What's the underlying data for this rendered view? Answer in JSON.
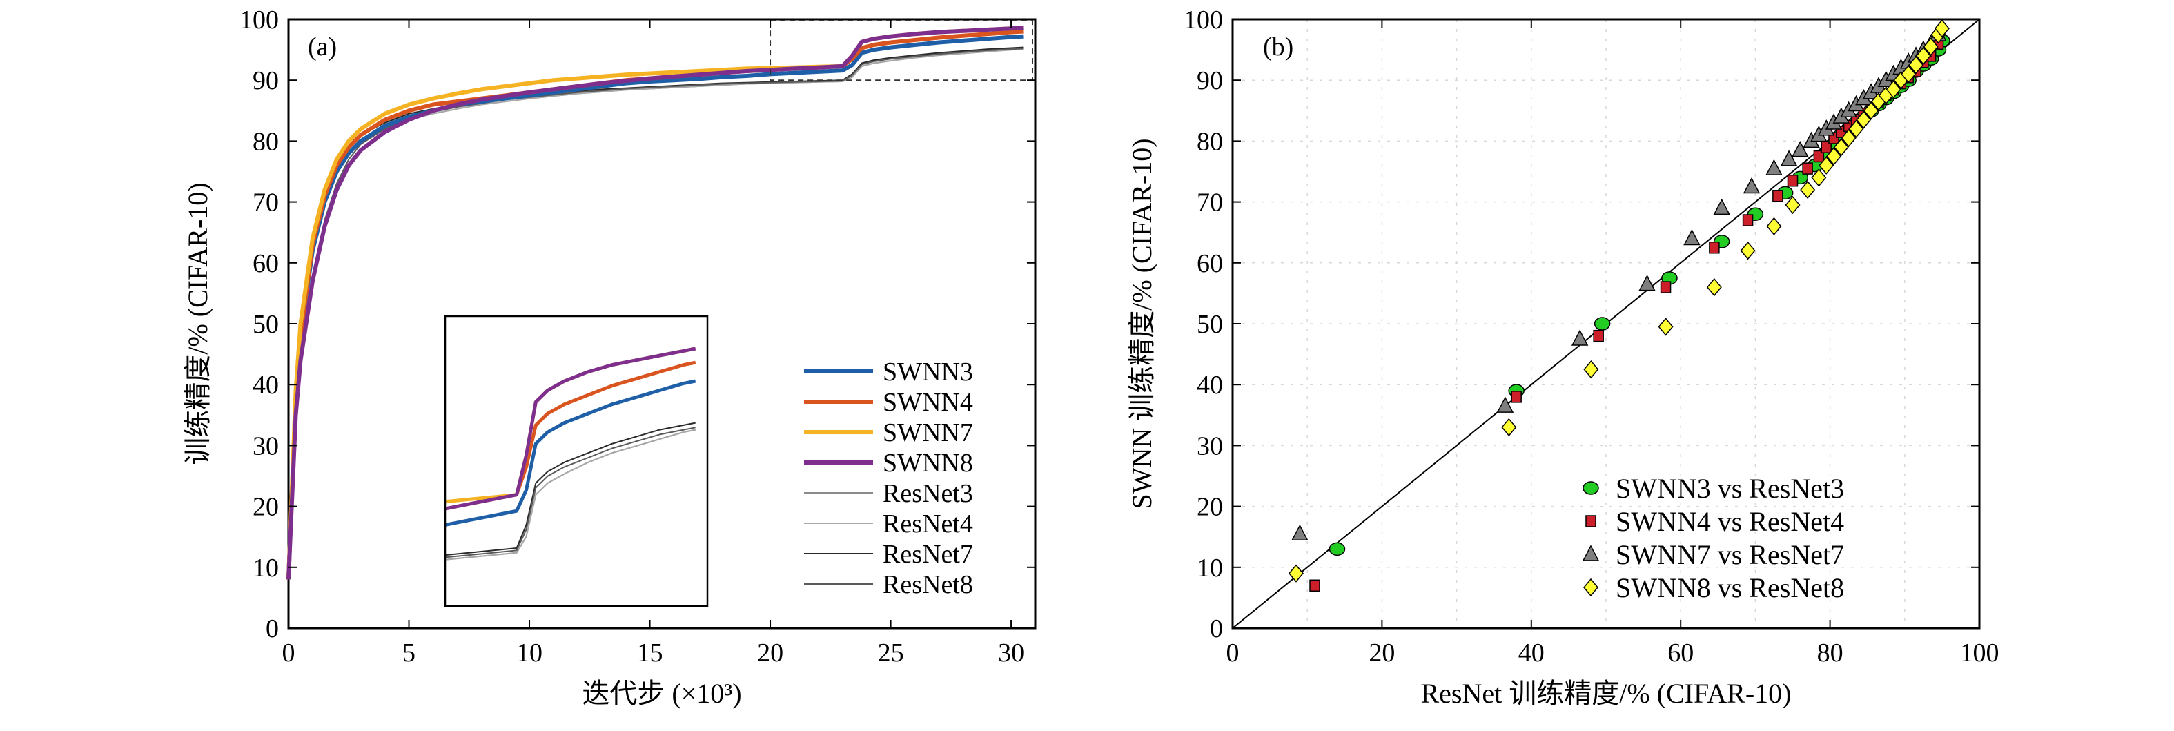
{
  "chart_data": [
    {
      "type": "line",
      "panel_label": "(a)",
      "xlabel": "迭代步 (×10³)",
      "ylabel": "训练精度/% (CIFAR-10)",
      "xlim": [
        0,
        31
      ],
      "ylim": [
        0,
        100
      ],
      "x_ticks": [
        "0",
        "5",
        "10",
        "15",
        "20",
        "25",
        "30"
      ],
      "y_ticks": [
        "0",
        "10",
        "20",
        "30",
        "40",
        "50",
        "60",
        "70",
        "80",
        "90",
        "100"
      ],
      "legend_position": "lower-right",
      "x": [
        0,
        0.3,
        0.5,
        1,
        1.5,
        2,
        2.5,
        3,
        4,
        5,
        6,
        7,
        8,
        9,
        10,
        11,
        12,
        13,
        14,
        15,
        16,
        17,
        18,
        19,
        20,
        21,
        22,
        23,
        23.4,
        23.8,
        24.3,
        25,
        26,
        27,
        28,
        29,
        30,
        30.5
      ],
      "series": [
        {
          "name": "SWNN3",
          "color": "#1f5fa8",
          "width": 6,
          "values": [
            8,
            38,
            48,
            62,
            70,
            75,
            78,
            80,
            82.5,
            84,
            85,
            86,
            86.5,
            87,
            87.5,
            88,
            88.5,
            89,
            89.5,
            89.8,
            90,
            90.2,
            90.5,
            90.7,
            91,
            91.2,
            91.4,
            91.6,
            92.5,
            94.5,
            95,
            95.4,
            95.8,
            96.2,
            96.5,
            96.8,
            97.1,
            97.2
          ]
        },
        {
          "name": "SWNN4",
          "color": "#d9541e",
          "width": 6,
          "values": [
            8,
            38,
            48,
            63,
            71,
            76,
            79,
            81,
            83.5,
            85,
            86,
            86.5,
            87,
            87.5,
            88,
            88.5,
            89,
            89.5,
            90,
            90.3,
            90.6,
            90.9,
            91.2,
            91.5,
            91.7,
            91.9,
            92.1,
            92.3,
            93.5,
            95.3,
            95.8,
            96.2,
            96.6,
            97,
            97.3,
            97.6,
            97.9,
            98
          ]
        },
        {
          "name": "SWNN7",
          "color": "#f5b324",
          "width": 6,
          "values": [
            8,
            39,
            50,
            64,
            72,
            77,
            80,
            82,
            84.5,
            86,
            87,
            87.8,
            88.5,
            89,
            89.5,
            90,
            90.3,
            90.6,
            90.9,
            91.1,
            91.3,
            91.5,
            91.7,
            91.9,
            92,
            92.1,
            92.2,
            92.3,
            94,
            96.3,
            96.8,
            97.2,
            97.6,
            97.9,
            98.1,
            98.3,
            98.5,
            98.6
          ]
        },
        {
          "name": "SWNN8",
          "color": "#7e2f8e",
          "width": 6,
          "values": [
            8,
            35,
            44,
            57,
            66,
            72,
            76,
            78.5,
            81.5,
            83.5,
            85,
            86,
            86.8,
            87.4,
            88,
            88.5,
            89,
            89.5,
            89.9,
            90.3,
            90.6,
            90.9,
            91.2,
            91.5,
            91.7,
            91.9,
            92.1,
            92.3,
            94,
            96.3,
            96.8,
            97.2,
            97.6,
            97.9,
            98.1,
            98.3,
            98.5,
            98.6
          ]
        },
        {
          "name": "ResNet3",
          "color": "#8a8a8a",
          "width": 2,
          "values": [
            8,
            38,
            48,
            62,
            70,
            75,
            78,
            80,
            82,
            83.5,
            84.5,
            85.3,
            86,
            86.5,
            87,
            87.4,
            87.8,
            88.1,
            88.4,
            88.6,
            88.8,
            89,
            89.2,
            89.4,
            89.5,
            89.6,
            89.7,
            89.8,
            90.5,
            92.3,
            92.8,
            93.2,
            93.7,
            94.1,
            94.4,
            94.7,
            95,
            95.1
          ]
        },
        {
          "name": "ResNet4",
          "color": "#a8a8a8",
          "width": 2,
          "values": [
            8,
            38,
            48,
            62,
            70,
            75,
            78,
            80,
            82,
            83.5,
            84.5,
            85.3,
            86,
            86.5,
            87,
            87.4,
            87.8,
            88.1,
            88.4,
            88.6,
            88.8,
            89,
            89.2,
            89.4,
            89.5,
            89.6,
            89.7,
            89.8,
            90.5,
            92.3,
            92.8,
            93.2,
            93.7,
            94.1,
            94.4,
            94.7,
            95,
            95.1
          ]
        },
        {
          "name": "ResNet7",
          "color": "#2a2a2a",
          "width": 2,
          "values": [
            8,
            39,
            49,
            63,
            71,
            76,
            79,
            81,
            83,
            84.5,
            85.3,
            86,
            86.6,
            87.1,
            87.5,
            87.9,
            88.2,
            88.5,
            88.7,
            88.9,
            89.1,
            89.3,
            89.5,
            89.6,
            89.7,
            89.8,
            89.9,
            90,
            91,
            92.8,
            93.3,
            93.7,
            94.1,
            94.5,
            94.8,
            95.1,
            95.3,
            95.4
          ]
        },
        {
          "name": "ResNet8",
          "color": "#5a5a5a",
          "width": 2,
          "values": [
            8,
            36,
            45,
            58,
            67,
            73,
            77,
            79.5,
            82,
            83.8,
            84.8,
            85.6,
            86.2,
            86.8,
            87.2,
            87.6,
            88,
            88.3,
            88.6,
            88.8,
            89,
            89.2,
            89.4,
            89.5,
            89.6,
            89.7,
            89.8,
            89.9,
            90.8,
            92.6,
            93.1,
            93.5,
            93.9,
            94.3,
            94.6,
            94.9,
            95.1,
            95.2
          ]
        }
      ],
      "inset_range": {
        "x": [
          20,
          31
        ],
        "y": [
          90,
          100
        ]
      }
    },
    {
      "type": "scatter",
      "panel_label": "(b)",
      "xlabel": "ResNet 训练精度/% (CIFAR-10)",
      "ylabel": "SWNN 训练精度/% (CIFAR-10)",
      "xlim": [
        0,
        100
      ],
      "ylim": [
        0,
        100
      ],
      "x_ticks": [
        "0",
        "20",
        "40",
        "60",
        "80",
        "100"
      ],
      "y_ticks": [
        "0",
        "10",
        "20",
        "30",
        "40",
        "50",
        "60",
        "70",
        "80",
        "90",
        "100"
      ],
      "reference_line": "y = x",
      "legend_position": "lower-right",
      "series": [
        {
          "name": "SWNN3 vs ResNet3",
          "marker": "circle",
          "color": "#22cc22",
          "points": [
            [
              14,
              13
            ],
            [
              38,
              39
            ],
            [
              49.5,
              50
            ],
            [
              58.5,
              57.5
            ],
            [
              65.5,
              63.5
            ],
            [
              70,
              68
            ],
            [
              74,
              71.5
            ],
            [
              76,
              74
            ],
            [
              78,
              76
            ],
            [
              79.5,
              78
            ],
            [
              80.5,
              79.5
            ],
            [
              81.5,
              81
            ],
            [
              82.5,
              82
            ],
            [
              83.5,
              83
            ],
            [
              84.5,
              84
            ],
            [
              85.5,
              85
            ],
            [
              86.5,
              86
            ],
            [
              87.5,
              87
            ],
            [
              88.5,
              88
            ],
            [
              89.5,
              89
            ],
            [
              90.5,
              90
            ],
            [
              91.5,
              91.5
            ],
            [
              92.5,
              92.5
            ],
            [
              93.5,
              93.5
            ],
            [
              94.5,
              95
            ],
            [
              95,
              96.5
            ]
          ]
        },
        {
          "name": "SWNN4 vs ResNet4",
          "marker": "square",
          "color": "#cc1f2a",
          "points": [
            [
              11,
              7
            ],
            [
              38,
              38
            ],
            [
              49,
              48
            ],
            [
              58,
              56
            ],
            [
              64.5,
              62.5
            ],
            [
              69,
              67
            ],
            [
              73,
              71
            ],
            [
              75,
              73.5
            ],
            [
              77,
              75.5
            ],
            [
              78.5,
              77.5
            ],
            [
              79.5,
              79
            ],
            [
              80.5,
              80.5
            ],
            [
              81.5,
              81.5
            ],
            [
              82.5,
              82.5
            ],
            [
              83.5,
              83.5
            ],
            [
              84.5,
              84.5
            ],
            [
              85.5,
              85.5
            ],
            [
              86.5,
              86.5
            ],
            [
              87.5,
              87.5
            ],
            [
              88.5,
              88.5
            ],
            [
              89.5,
              89.5
            ],
            [
              90.5,
              90.5
            ],
            [
              91.5,
              91.5
            ],
            [
              92.5,
              93
            ],
            [
              93.5,
              94
            ],
            [
              94.5,
              96
            ]
          ]
        },
        {
          "name": "SWNN7 vs ResNet7",
          "marker": "triangle",
          "color": "#7f7f7f",
          "points": [
            [
              9,
              15.5
            ],
            [
              36.5,
              36.5
            ],
            [
              46.5,
              47.5
            ],
            [
              55.5,
              56.5
            ],
            [
              61.5,
              64
            ],
            [
              65.5,
              69
            ],
            [
              69.5,
              72.5
            ],
            [
              72.5,
              75.5
            ],
            [
              74.5,
              77
            ],
            [
              76,
              78.5
            ],
            [
              77.5,
              80
            ],
            [
              78.5,
              81
            ],
            [
              79.5,
              82
            ],
            [
              80.5,
              83
            ],
            [
              81.5,
              84
            ],
            [
              82.5,
              85
            ],
            [
              83.5,
              86
            ],
            [
              84.5,
              87
            ],
            [
              85.5,
              88
            ],
            [
              86.5,
              89
            ],
            [
              87.5,
              90
            ],
            [
              88.5,
              91
            ],
            [
              89.5,
              92
            ],
            [
              90.5,
              93
            ],
            [
              91.5,
              94
            ],
            [
              92.5,
              95
            ],
            [
              93.5,
              96
            ],
            [
              94.5,
              97.5
            ]
          ]
        },
        {
          "name": "SWNN8 vs ResNet8",
          "marker": "diamond",
          "color": "#ffff33",
          "points": [
            [
              8.5,
              9
            ],
            [
              37,
              33
            ],
            [
              48,
              42.5
            ],
            [
              58,
              49.5
            ],
            [
              64.5,
              56
            ],
            [
              69,
              62
            ],
            [
              72.5,
              66
            ],
            [
              75,
              69.5
            ],
            [
              77,
              72
            ],
            [
              78.5,
              74
            ],
            [
              79.5,
              76
            ],
            [
              80.5,
              77.5
            ],
            [
              81.5,
              79
            ],
            [
              82.5,
              80.5
            ],
            [
              83.5,
              82
            ],
            [
              84.5,
              83.5
            ],
            [
              85.5,
              85
            ],
            [
              86.5,
              86.5
            ],
            [
              87.5,
              87.5
            ],
            [
              88.5,
              88.5
            ],
            [
              89.5,
              90
            ],
            [
              90.5,
              91
            ],
            [
              91.5,
              92.5
            ],
            [
              92.5,
              94
            ],
            [
              93.5,
              95.5
            ],
            [
              94.5,
              97.5
            ],
            [
              95,
              98.5
            ]
          ]
        }
      ]
    }
  ]
}
